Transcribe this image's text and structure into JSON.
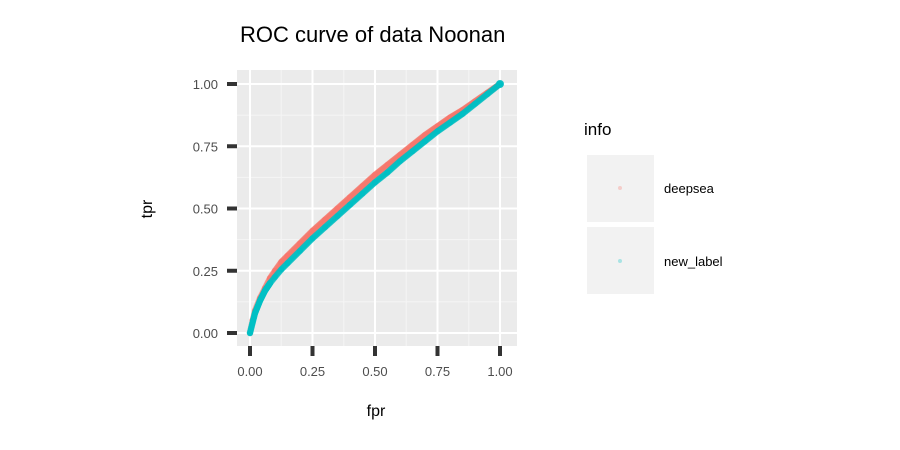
{
  "chart_data": {
    "type": "scatter",
    "title": "ROC curve of data Noonan",
    "xlabel": "fpr",
    "ylabel": "tpr",
    "xlim": [
      0,
      1
    ],
    "ylim": [
      0,
      1
    ],
    "x_ticks": [
      "0.00",
      "0.25",
      "0.50",
      "0.75",
      "1.00"
    ],
    "y_ticks": [
      "0.00",
      "0.25",
      "0.50",
      "0.75",
      "1.00"
    ],
    "grid": true,
    "legend": {
      "title": "info",
      "position": "right"
    },
    "series": [
      {
        "name": "deepsea",
        "color": "#F8766D",
        "x": [
          0.0,
          0.01,
          0.02,
          0.04,
          0.06,
          0.08,
          0.1,
          0.125,
          0.15,
          0.2,
          0.25,
          0.3,
          0.35,
          0.4,
          0.45,
          0.5,
          0.55,
          0.6,
          0.65,
          0.7,
          0.75,
          0.8,
          0.85,
          0.9,
          0.95,
          1.0
        ],
        "y": [
          0.0,
          0.05,
          0.09,
          0.14,
          0.18,
          0.22,
          0.25,
          0.285,
          0.31,
          0.36,
          0.41,
          0.455,
          0.5,
          0.545,
          0.59,
          0.635,
          0.675,
          0.715,
          0.755,
          0.795,
          0.83,
          0.865,
          0.895,
          0.93,
          0.965,
          1.0
        ]
      },
      {
        "name": "new_label",
        "color": "#00BFC4",
        "x": [
          0.0,
          0.01,
          0.02,
          0.04,
          0.06,
          0.08,
          0.1,
          0.125,
          0.15,
          0.2,
          0.25,
          0.3,
          0.35,
          0.4,
          0.45,
          0.5,
          0.55,
          0.6,
          0.65,
          0.7,
          0.75,
          0.8,
          0.85,
          0.9,
          0.95,
          1.0
        ],
        "y": [
          0.0,
          0.04,
          0.08,
          0.13,
          0.17,
          0.2,
          0.225,
          0.255,
          0.28,
          0.33,
          0.38,
          0.425,
          0.47,
          0.515,
          0.56,
          0.605,
          0.645,
          0.69,
          0.73,
          0.77,
          0.81,
          0.845,
          0.88,
          0.92,
          0.96,
          1.0
        ]
      }
    ]
  }
}
